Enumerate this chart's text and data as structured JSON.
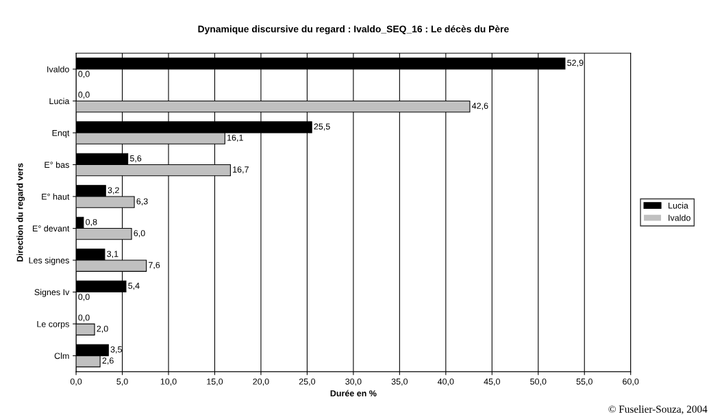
{
  "chart_data": {
    "type": "bar",
    "orientation": "horizontal",
    "title": "Dynamique discursive du regard : Ivaldo_SEQ_16 : Le décès du Père",
    "xlabel": "Durée en %",
    "ylabel": "Direction du regard vers",
    "categories": [
      "Ivaldo",
      "Lucia",
      "Enqt",
      "E° bas",
      "E° haut",
      "E° devant",
      "Les signes",
      "Signes Iv",
      "Le corps",
      "Clm"
    ],
    "series": [
      {
        "name": "Lucia",
        "color": "#000000",
        "values": [
          52.9,
          0.0,
          25.5,
          5.6,
          3.2,
          0.8,
          3.1,
          5.4,
          0.0,
          3.5
        ],
        "value_labels": [
          "52,9",
          "0,0",
          "25,5",
          "5,6",
          "3,2",
          "0,8",
          "3,1",
          "5,4",
          "0,0",
          "3,5"
        ]
      },
      {
        "name": "Ivaldo",
        "color": "#c0c0c0",
        "values": [
          0.0,
          42.6,
          16.1,
          16.7,
          6.3,
          6.0,
          7.6,
          0.0,
          2.0,
          2.6
        ],
        "value_labels": [
          "0,0",
          "42,6",
          "16,1",
          "16,7",
          "6,3",
          "6,0",
          "7,6",
          "0,0",
          "2,0",
          "2,6"
        ]
      }
    ],
    "xlim": [
      0,
      60
    ],
    "xticks": [
      {
        "value": 0,
        "label": "0,0"
      },
      {
        "value": 5,
        "label": "5,0"
      },
      {
        "value": 10,
        "label": "10,0"
      },
      {
        "value": 15,
        "label": "15,0"
      },
      {
        "value": 20,
        "label": "20,0"
      },
      {
        "value": 25,
        "label": "25,0"
      },
      {
        "value": 30,
        "label": "30,0"
      },
      {
        "value": 35,
        "label": "35,0"
      },
      {
        "value": 40,
        "label": "40,0"
      },
      {
        "value": 45,
        "label": "45,0"
      },
      {
        "value": 50,
        "label": "50,0"
      },
      {
        "value": 55,
        "label": "55,0"
      },
      {
        "value": 60,
        "label": "60,0"
      }
    ],
    "grid": "x",
    "legend": "right",
    "annotations": [
      "© Fuselier-Souza, 2004"
    ]
  }
}
